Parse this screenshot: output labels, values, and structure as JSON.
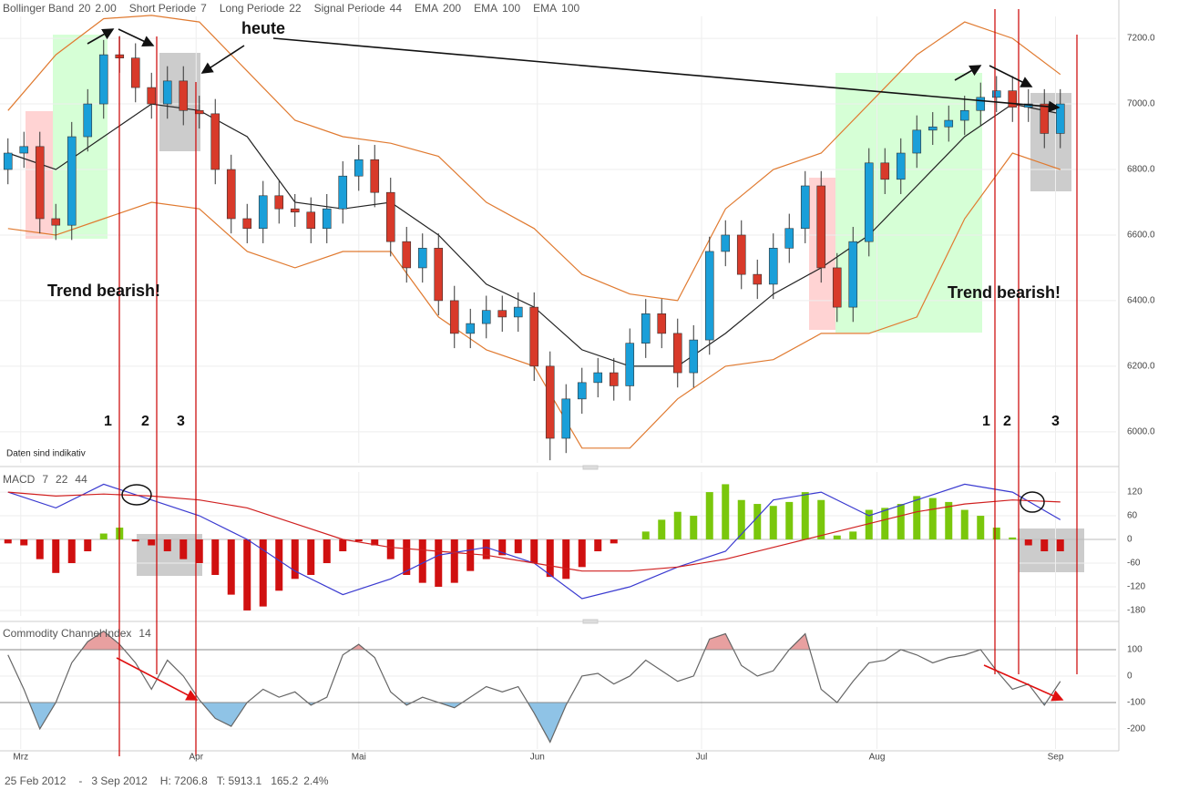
{
  "chart_data": [
    {
      "type": "candlestick",
      "indicators": [
        {
          "name": "Bollinger Band",
          "params": [
            20,
            "2.00"
          ],
          "color": "#d8781e"
        },
        {
          "name": "Short Periode",
          "params": [
            7
          ],
          "color": "#777777"
        },
        {
          "name": "Long Periode",
          "params": [
            22
          ],
          "color": "#777777"
        },
        {
          "name": "Signal Periode",
          "params": [
            44
          ],
          "color": "#777777"
        },
        {
          "name": "EMA",
          "params": [
            200
          ],
          "color": "#8b1a8b"
        },
        {
          "name": "EMA",
          "params": [
            100
          ],
          "color": "#1a5fb4"
        },
        {
          "name": "EMA",
          "params": [
            100
          ],
          "color": "#a0601a"
        }
      ],
      "open": [
        6800,
        6850,
        6870,
        6650,
        6630,
        6900,
        7000,
        7150,
        7140,
        7050,
        7000,
        7070,
        6980,
        6970,
        6800,
        6650,
        6620,
        6720,
        6680,
        6670,
        6620,
        6680,
        6780,
        6830,
        6730,
        6580,
        6500,
        6560,
        6400,
        6300,
        6330,
        6370,
        6350,
        6380,
        6200,
        5980,
        6100,
        6150,
        6180,
        6140,
        6270,
        6360,
        6300,
        6180,
        6280,
        6550,
        6600,
        6480,
        6450,
        6560,
        6620,
        6750,
        6500,
        6380,
        6580,
        6820,
        6770,
        6850,
        6920,
        6930,
        6950,
        6980,
        7020,
        7040,
        6990,
        7000,
        6910
      ],
      "high": [
        6895,
        6915,
        6915,
        6695,
        6945,
        7045,
        7195,
        7207,
        7185,
        7095,
        7115,
        7115,
        7025,
        7015,
        6845,
        6695,
        6765,
        6765,
        6725,
        6715,
        6725,
        6825,
        6875,
        6875,
        6775,
        6625,
        6605,
        6605,
        6445,
        6375,
        6415,
        6415,
        6425,
        6425,
        6245,
        6145,
        6195,
        6225,
        6225,
        6315,
        6405,
        6405,
        6345,
        6325,
        6595,
        6645,
        6645,
        6525,
        6605,
        6665,
        6795,
        6795,
        6545,
        6625,
        6865,
        6865,
        6895,
        6965,
        6975,
        6995,
        7025,
        7065,
        7085,
        7085,
        7045,
        7045,
        7045
      ],
      "low": [
        6755,
        6805,
        6605,
        6585,
        6585,
        6855,
        6955,
        7095,
        7005,
        6955,
        6955,
        6935,
        6925,
        6755,
        6605,
        6575,
        6575,
        6635,
        6625,
        6575,
        6575,
        6635,
        6735,
        6685,
        6535,
        6455,
        6455,
        6355,
        6255,
        6255,
        6285,
        6305,
        6305,
        6155,
        5913,
        5935,
        6055,
        6105,
        6095,
        6095,
        6225,
        6255,
        6135,
        6135,
        6235,
        6505,
        6435,
        6405,
        6405,
        6515,
        6575,
        6455,
        6335,
        6335,
        6535,
        6725,
        6725,
        6805,
        6875,
        6885,
        6905,
        6935,
        6975,
        6945,
        6945,
        6865,
        6865
      ],
      "close": [
        6850,
        6870,
        6650,
        6630,
        6900,
        7000,
        7150,
        7140,
        7050,
        7000,
        7070,
        6980,
        6970,
        6800,
        6650,
        6620,
        6720,
        6680,
        6670,
        6620,
        6680,
        6780,
        6830,
        6730,
        6580,
        6500,
        6560,
        6400,
        6300,
        6330,
        6370,
        6350,
        6380,
        6200,
        5980,
        6100,
        6150,
        6180,
        6140,
        6270,
        6360,
        6300,
        6180,
        6280,
        6550,
        6600,
        6480,
        6450,
        6560,
        6620,
        6750,
        6500,
        6380,
        6580,
        6820,
        6770,
        6850,
        6920,
        6930,
        6950,
        6980,
        7020,
        7040,
        6990,
        7000,
        6910,
        7000
      ],
      "up_color": "#1a9fd9",
      "down_color": "#d83a2a",
      "overlays": [
        {
          "color": "#e07a30",
          "x": [
            0,
            3,
            6,
            9,
            12,
            15,
            18,
            21,
            24,
            27,
            30,
            33,
            36,
            39,
            42,
            45,
            48,
            51,
            54,
            57,
            60,
            63,
            66
          ],
          "values": [
            6980,
            7150,
            7260,
            7270,
            7250,
            7100,
            6950,
            6900,
            6880,
            6840,
            6700,
            6620,
            6480,
            6420,
            6400,
            6680,
            6800,
            6850,
            7000,
            7150,
            7250,
            7200,
            7090
          ]
        },
        {
          "color": "#e07a30",
          "x": [
            0,
            3,
            6,
            9,
            12,
            15,
            18,
            21,
            24,
            27,
            30,
            33,
            36,
            39,
            42,
            45,
            48,
            51,
            54,
            57,
            60,
            63,
            66
          ],
          "values": [
            6620,
            6600,
            6650,
            6700,
            6680,
            6550,
            6500,
            6550,
            6550,
            6350,
            6250,
            6200,
            5950,
            5950,
            6100,
            6200,
            6220,
            6300,
            6300,
            6350,
            6650,
            6850,
            6800
          ]
        },
        {
          "color": "#222222",
          "x": [
            0,
            3,
            6,
            9,
            12,
            15,
            18,
            21,
            24,
            27,
            30,
            33,
            36,
            39,
            42,
            45,
            48,
            51,
            54,
            57,
            60,
            63,
            66
          ],
          "values": [
            6850,
            6800,
            6900,
            7000,
            6980,
            6900,
            6700,
            6680,
            6700,
            6600,
            6450,
            6380,
            6250,
            6200,
            6200,
            6300,
            6420,
            6500,
            6600,
            6750,
            6900,
            7000,
            6970
          ]
        }
      ],
      "annotations": [
        "heute",
        "Trend bearish!",
        "Trend bearish!",
        "1",
        "2",
        "3",
        "1",
        "2",
        "3",
        "Daten sind indikativ"
      ],
      "xlim": [
        -0.5,
        69.5
      ],
      "ylim": [
        5905,
        7267
      ],
      "yticks": [
        {
          "value": 6000,
          "label": "6000.0"
        },
        {
          "value": 6200,
          "label": "6200.0"
        },
        {
          "value": 6400,
          "label": "6400.0"
        },
        {
          "value": 6600,
          "label": "6600.0"
        },
        {
          "value": 6800,
          "label": "6800.0"
        },
        {
          "value": 7000,
          "label": "7000.0"
        },
        {
          "value": 7200,
          "label": "7200.0"
        }
      ],
      "grid": true
    },
    {
      "type": "macd",
      "title": "MACD",
      "params": [
        7,
        22,
        44
      ],
      "param_color": "#cc1111",
      "values": [
        -10,
        -15,
        -50,
        -85,
        -60,
        -30,
        15,
        30,
        -5,
        -15,
        -30,
        -50,
        -60,
        -90,
        -140,
        -180,
        -170,
        -130,
        -100,
        -90,
        -60,
        -30,
        -5,
        -15,
        -50,
        -90,
        -110,
        -120,
        -110,
        -80,
        -50,
        -40,
        -35,
        -60,
        -95,
        -100,
        -70,
        -30,
        -10,
        0,
        20,
        50,
        70,
        60,
        120,
        140,
        100,
        90,
        85,
        95,
        120,
        100,
        10,
        20,
        75,
        80,
        90,
        110,
        105,
        95,
        75,
        60,
        30,
        5,
        -15,
        -30,
        -30
      ],
      "positive_color": "#7ac70c",
      "negative_color": "#d01010",
      "overlays": [
        {
          "color": "#3a3ad0",
          "x": [
            0,
            3,
            6,
            9,
            12,
            15,
            18,
            21,
            24,
            27,
            30,
            33,
            36,
            39,
            42,
            45,
            48,
            51,
            54,
            57,
            60,
            63,
            66
          ],
          "values": [
            120,
            80,
            140,
            100,
            60,
            0,
            -80,
            -140,
            -100,
            -40,
            -20,
            -60,
            -150,
            -120,
            -70,
            -30,
            100,
            120,
            60,
            100,
            140,
            120,
            50
          ]
        },
        {
          "color": "#d02020",
          "x": [
            0,
            3,
            6,
            9,
            12,
            15,
            18,
            21,
            24,
            27,
            30,
            33,
            36,
            39,
            42,
            45,
            48,
            51,
            54,
            57,
            60,
            63,
            66
          ],
          "values": [
            120,
            110,
            115,
            110,
            100,
            80,
            40,
            0,
            -20,
            -30,
            -40,
            -60,
            -80,
            -80,
            -70,
            -50,
            -20,
            10,
            40,
            70,
            90,
            100,
            95
          ]
        }
      ],
      "xlim": [
        -0.5,
        69.5
      ],
      "ylim": [
        -194,
        171
      ],
      "yticks": [
        120,
        60,
        0,
        -60,
        -120,
        -180
      ],
      "grid": true
    },
    {
      "type": "line",
      "title": "Commodity Channel Index",
      "params": [
        14
      ],
      "param_color": "#777777",
      "values": [
        80,
        -50,
        -200,
        -100,
        50,
        130,
        170,
        120,
        50,
        -50,
        60,
        0,
        -90,
        -160,
        -190,
        -100,
        -50,
        -80,
        -60,
        -110,
        -80,
        80,
        120,
        70,
        -60,
        -110,
        -80,
        -100,
        -120,
        -80,
        -40,
        -60,
        -40,
        -140,
        -250,
        -110,
        0,
        10,
        -30,
        0,
        60,
        20,
        -20,
        0,
        140,
        160,
        40,
        0,
        20,
        100,
        160,
        -50,
        -100,
        -20,
        50,
        60,
        100,
        80,
        50,
        70,
        80,
        100,
        20,
        -50,
        -30,
        -110,
        -20
      ],
      "color": "#666666",
      "zones": {
        "upper": 100,
        "lower": -100,
        "upper_color": "#e8a0a0",
        "lower_color": "#8fc3e6"
      },
      "xlim": [
        -0.5,
        69.5
      ],
      "ylim": [
        -276,
        186
      ],
      "yticks": [
        100,
        0,
        -100,
        -200
      ],
      "xticks": [
        {
          "value": 0.8,
          "label": "Mrz"
        },
        {
          "value": 11.8,
          "label": "Apr"
        },
        {
          "value": 22,
          "label": "Mai"
        },
        {
          "value": 33.2,
          "label": "Jun"
        },
        {
          "value": 43.5,
          "label": "Jul"
        },
        {
          "value": 54.5,
          "label": "Aug"
        },
        {
          "value": 65.7,
          "label": "Sep"
        }
      ],
      "grid": true
    }
  ],
  "footer": {
    "from": "25 Feb 2012",
    "separator": "-",
    "to": "3 Sep 2012",
    "high": "H: 7206.8",
    "low": "T: 5913.1",
    "change": "165.2",
    "change_pct": "2.4%",
    "change_color": "#1a9fd9"
  }
}
